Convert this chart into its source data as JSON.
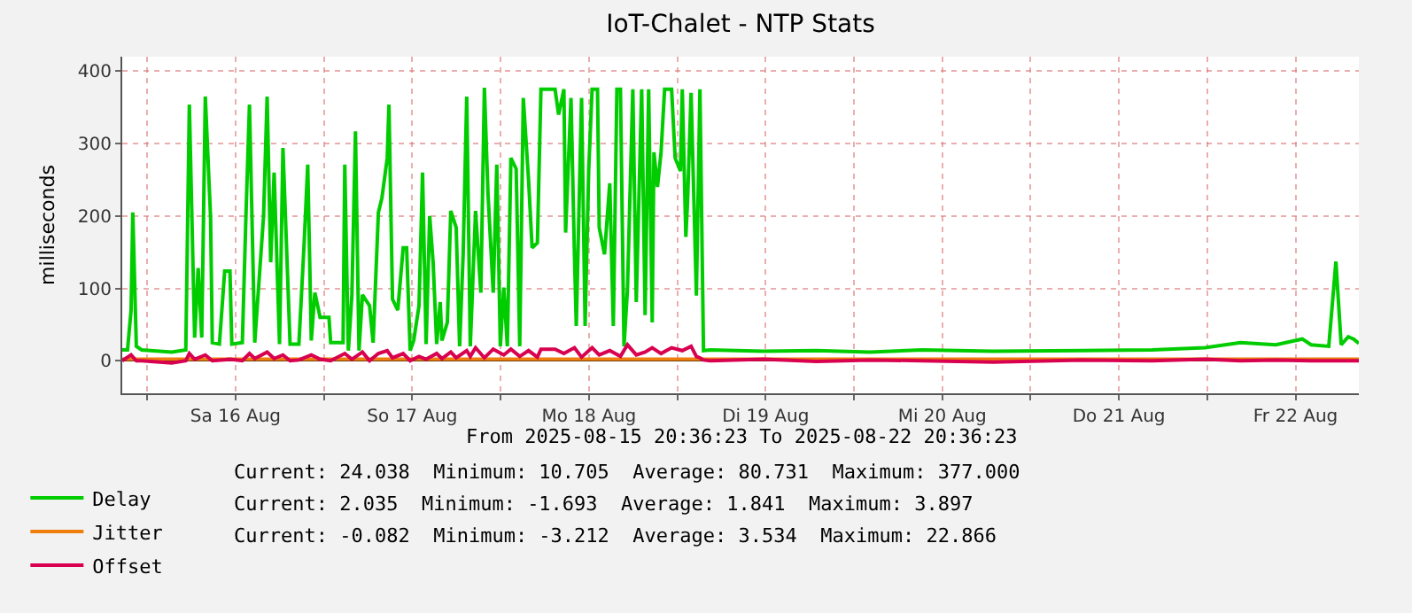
{
  "chart_data": {
    "type": "line",
    "title": "IoT-Chalet - NTP Stats",
    "ylabel": "milliseconds",
    "xlim": [
      "2025-08-15T20:36",
      "2025-08-22T20:36"
    ],
    "xticks": [
      {
        "value": "2025-08-16T00:00",
        "label": null
      },
      {
        "value": "2025-08-16T12:00",
        "label": "Sa 16 Aug"
      },
      {
        "value": "2025-08-17T00:00",
        "label": null
      },
      {
        "value": "2025-08-17T12:00",
        "label": "So 17 Aug"
      },
      {
        "value": "2025-08-18T00:00",
        "label": null
      },
      {
        "value": "2025-08-18T12:00",
        "label": "Mo 18 Aug"
      },
      {
        "value": "2025-08-19T00:00",
        "label": null
      },
      {
        "value": "2025-08-19T12:00",
        "label": "Di 19 Aug"
      },
      {
        "value": "2025-08-20T00:00",
        "label": null
      },
      {
        "value": "2025-08-20T12:00",
        "label": "Mi 20 Aug"
      },
      {
        "value": "2025-08-21T00:00",
        "label": null
      },
      {
        "value": "2025-08-21T12:00",
        "label": "Do 21 Aug"
      },
      {
        "value": "2025-08-22T00:00",
        "label": null
      },
      {
        "value": "2025-08-22T12:00",
        "label": "Fr 22 Aug"
      }
    ],
    "ylim": [
      -45,
      420
    ],
    "yticks": [
      0,
      100,
      200,
      300,
      400
    ],
    "grid": true,
    "legend": "bottom left",
    "marker": "none",
    "line_style": "solid",
    "annotations": [
      "From 2025-08-15 20:36:23 To 2025-08-22 20:36:23",
      "Current: 24.038  Minimum: 10.705  Average: 80.731  Maximum: 377.000",
      "Current: 2.035  Minimum: -1.693  Average: 1.841  Maximum: 3.897",
      "Current: -0.082  Minimum: -3.212  Average: 3.534  Maximum: 22.866"
    ],
    "series": [
      {
        "name": "Delay",
        "color": "#00cc00",
        "x": [
          "2025-08-15T20:36",
          "2025-08-15T21:19",
          "2025-08-15T21:48",
          "2025-08-15T22:02",
          "2025-08-15T22:31",
          "2025-08-15T23:14",
          "2025-08-16T03:19",
          "2025-08-16T05:14",
          "2025-08-16T05:43",
          "2025-08-16T06:26",
          "2025-08-16T06:55",
          "2025-08-16T07:24",
          "2025-08-16T07:53",
          "2025-08-16T08:36",
          "2025-08-16T08:50",
          "2025-08-16T09:48",
          "2025-08-16T10:31",
          "2025-08-16T11:14",
          "2025-08-16T11:29",
          "2025-08-16T12:55",
          "2025-08-16T13:24",
          "2025-08-16T13:53",
          "2025-08-16T14:36",
          "2025-08-16T15:48",
          "2025-08-16T16:17",
          "2025-08-16T16:46",
          "2025-08-16T17:14",
          "2025-08-16T17:58",
          "2025-08-16T18:26",
          "2025-08-16T19:24",
          "2025-08-16T20:36",
          "2025-08-16T21:19",
          "2025-08-16T21:48",
          "2025-08-16T22:17",
          "2025-08-16T22:46",
          "2025-08-16T23:29",
          "2025-08-17T00:41",
          "2025-08-17T00:55",
          "2025-08-17T02:36",
          "2025-08-17T02:50",
          "2025-08-17T03:19",
          "2025-08-17T03:48",
          "2025-08-17T04:17",
          "2025-08-17T04:46",
          "2025-08-17T05:14",
          "2025-08-17T06:12",
          "2025-08-17T06:41",
          "2025-08-17T07:24",
          "2025-08-17T07:53",
          "2025-08-17T08:36",
          "2025-08-17T08:50",
          "2025-08-17T09:19",
          "2025-08-17T10:02",
          "2025-08-17T10:46",
          "2025-08-17T11:14",
          "2025-08-17T11:43",
          "2025-08-17T12:12",
          "2025-08-17T12:55",
          "2025-08-17T13:24",
          "2025-08-17T13:53",
          "2025-08-17T14:22",
          "2025-08-17T14:50",
          "2025-08-17T15:19",
          "2025-08-17T15:48",
          "2025-08-17T16:02",
          "2025-08-17T16:46",
          "2025-08-17T17:14",
          "2025-08-17T17:58",
          "2025-08-17T18:26",
          "2025-08-17T18:55",
          "2025-08-17T19:24",
          "2025-08-17T19:53",
          "2025-08-17T20:36",
          "2025-08-17T21:19",
          "2025-08-17T21:48",
          "2025-08-17T22:17",
          "2025-08-17T23:00",
          "2025-08-17T23:29",
          "2025-08-17T23:58",
          "2025-08-18T00:26",
          "2025-08-18T00:55",
          "2025-08-18T01:24",
          "2025-08-18T02:07",
          "2025-08-18T02:36",
          "2025-08-18T03:05",
          "2025-08-18T03:48",
          "2025-08-18T04:17",
          "2025-08-18T05:00",
          "2025-08-18T05:29",
          "2025-08-18T07:24",
          "2025-08-18T07:53",
          "2025-08-18T08:36",
          "2025-08-18T08:50",
          "2025-08-18T09:34",
          "2025-08-18T10:02",
          "2025-08-18T10:17",
          "2025-08-18T11:00",
          "2025-08-18T11:29",
          "2025-08-18T11:58",
          "2025-08-18T12:26",
          "2025-08-18T13:10",
          "2025-08-18T13:24",
          "2025-08-18T14:07",
          "2025-08-18T14:50",
          "2025-08-18T15:19",
          "2025-08-18T15:48",
          "2025-08-18T16:17",
          "2025-08-18T16:46",
          "2025-08-18T17:14",
          "2025-08-18T17:58",
          "2025-08-18T18:26",
          "2025-08-18T19:10",
          "2025-08-18T19:38",
          "2025-08-18T20:07",
          "2025-08-18T20:36",
          "2025-08-18T20:50",
          "2025-08-18T21:19",
          "2025-08-18T21:48",
          "2025-08-18T22:17",
          "2025-08-18T23:14",
          "2025-08-18T23:43",
          "2025-08-19T00:26",
          "2025-08-19T00:41",
          "2025-08-19T01:10",
          "2025-08-19T01:24",
          "2025-08-19T01:53",
          "2025-08-19T02:36",
          "2025-08-19T03:05",
          "2025-08-19T03:34",
          "2025-08-19T04:31",
          "2025-08-19T11:43",
          "2025-08-19T18:55",
          "2025-08-20T02:07",
          "2025-08-20T09:19",
          "2025-08-20T18:55",
          "2025-08-21T06:55",
          "2025-08-21T16:31",
          "2025-08-21T23:43",
          "2025-08-22T04:31",
          "2025-08-22T09:19",
          "2025-08-22T12:55",
          "2025-08-22T14:07",
          "2025-08-22T16:31",
          "2025-08-22T17:29",
          "2025-08-22T18:12",
          "2025-08-22T19:10",
          "2025-08-22T19:53",
          "2025-08-22T20:36"
        ],
        "values": [
          15,
          15,
          70,
          205,
          20,
          15,
          12,
          15,
          354,
          32,
          128,
          32,
          365,
          198,
          25,
          23,
          124,
          124,
          23,
          25,
          198,
          354,
          25,
          200,
          365,
          136,
          260,
          23,
          294,
          23,
          23,
          163,
          271,
          28,
          94,
          60,
          60,
          25,
          25,
          271,
          14,
          91,
          317,
          14,
          91,
          76,
          25,
          205,
          225,
          280,
          354,
          85,
          70,
          156,
          156,
          14,
          28,
          76,
          260,
          23,
          200,
          136,
          23,
          81,
          28,
          53,
          207,
          184,
          20,
          147,
          365,
          20,
          207,
          94,
          377,
          232,
          94,
          271,
          20,
          101,
          20,
          280,
          265,
          20,
          363,
          250,
          156,
          163,
          375,
          375,
          340,
          375,
          177,
          363,
          147,
          48,
          363,
          48,
          262,
          375,
          375,
          184,
          147,
          245,
          48,
          375,
          375,
          20,
          98,
          375,
          81,
          375,
          63,
          375,
          53,
          288,
          240,
          288,
          375,
          375,
          280,
          262,
          375,
          171,
          220,
          370,
          90,
          375,
          14,
          15,
          13,
          14,
          12,
          15,
          13,
          14,
          15,
          18,
          25,
          22,
          30,
          22,
          20,
          137,
          22,
          33,
          30,
          24
        ]
      },
      {
        "name": "Jitter",
        "color": "#ee7f0e",
        "x": [
          "2025-08-15T20:36",
          "2025-08-16T12:00",
          "2025-08-17T12:00",
          "2025-08-18T12:00",
          "2025-08-19T12:00",
          "2025-08-20T12:00",
          "2025-08-21T12:00",
          "2025-08-22T20:36"
        ],
        "values": [
          2,
          2,
          2,
          2,
          2,
          2,
          2,
          2
        ]
      },
      {
        "name": "Offset",
        "color": "#d8004f",
        "x": [
          "2025-08-15T20:36",
          "2025-08-15T21:48",
          "2025-08-15T22:31",
          "2025-08-15T23:14",
          "2025-08-16T03:19",
          "2025-08-16T05:14",
          "2025-08-16T05:43",
          "2025-08-16T06:26",
          "2025-08-16T07:53",
          "2025-08-16T08:50",
          "2025-08-16T11:14",
          "2025-08-16T12:55",
          "2025-08-16T13:53",
          "2025-08-16T14:36",
          "2025-08-16T16:17",
          "2025-08-16T17:14",
          "2025-08-16T18:26",
          "2025-08-16T19:24",
          "2025-08-16T20:36",
          "2025-08-16T22:17",
          "2025-08-16T23:29",
          "2025-08-17T00:55",
          "2025-08-17T02:50",
          "2025-08-17T03:48",
          "2025-08-17T05:14",
          "2025-08-17T06:12",
          "2025-08-17T07:24",
          "2025-08-17T08:36",
          "2025-08-17T09:19",
          "2025-08-17T10:46",
          "2025-08-17T11:43",
          "2025-08-17T12:55",
          "2025-08-17T13:53",
          "2025-08-17T15:19",
          "2025-08-17T16:02",
          "2025-08-17T17:14",
          "2025-08-17T17:58",
          "2025-08-17T19:24",
          "2025-08-17T19:53",
          "2025-08-17T20:36",
          "2025-08-17T21:48",
          "2025-08-17T23:00",
          "2025-08-18T00:26",
          "2025-08-18T01:24",
          "2025-08-18T02:36",
          "2025-08-18T03:48",
          "2025-08-18T05:00",
          "2025-08-18T05:29",
          "2025-08-18T07:24",
          "2025-08-18T08:36",
          "2025-08-18T10:02",
          "2025-08-18T11:00",
          "2025-08-18T12:26",
          "2025-08-18T13:24",
          "2025-08-18T14:50",
          "2025-08-18T16:17",
          "2025-08-18T17:14",
          "2025-08-18T18:26",
          "2025-08-18T19:38",
          "2025-08-18T20:36",
          "2025-08-18T21:48",
          "2025-08-18T23:14",
          "2025-08-19T00:41",
          "2025-08-19T01:53",
          "2025-08-19T02:36",
          "2025-08-19T03:05",
          "2025-08-19T03:34",
          "2025-08-19T04:31",
          "2025-08-19T11:43",
          "2025-08-19T18:55",
          "2025-08-20T02:07",
          "2025-08-20T09:19",
          "2025-08-20T18:55",
          "2025-08-21T06:55",
          "2025-08-21T16:31",
          "2025-08-21T23:43",
          "2025-08-22T04:31",
          "2025-08-22T09:19",
          "2025-08-22T14:07",
          "2025-08-22T20:36"
        ],
        "values": [
          0,
          8,
          0,
          0,
          -3,
          0,
          10,
          2,
          8,
          0,
          2,
          0,
          10,
          3,
          12,
          3,
          8,
          0,
          1,
          8,
          2,
          0,
          10,
          2,
          12,
          0,
          10,
          14,
          4,
          10,
          0,
          6,
          2,
          10,
          3,
          12,
          4,
          14,
          6,
          18,
          4,
          16,
          8,
          16,
          6,
          14,
          5,
          16,
          16,
          10,
          18,
          5,
          18,
          8,
          14,
          6,
          22,
          8,
          12,
          18,
          10,
          18,
          14,
          20,
          6,
          4,
          1,
          0,
          2,
          -1,
          1,
          0,
          -2,
          1,
          0,
          2,
          0,
          1,
          0,
          0
        ]
      }
    ]
  }
}
